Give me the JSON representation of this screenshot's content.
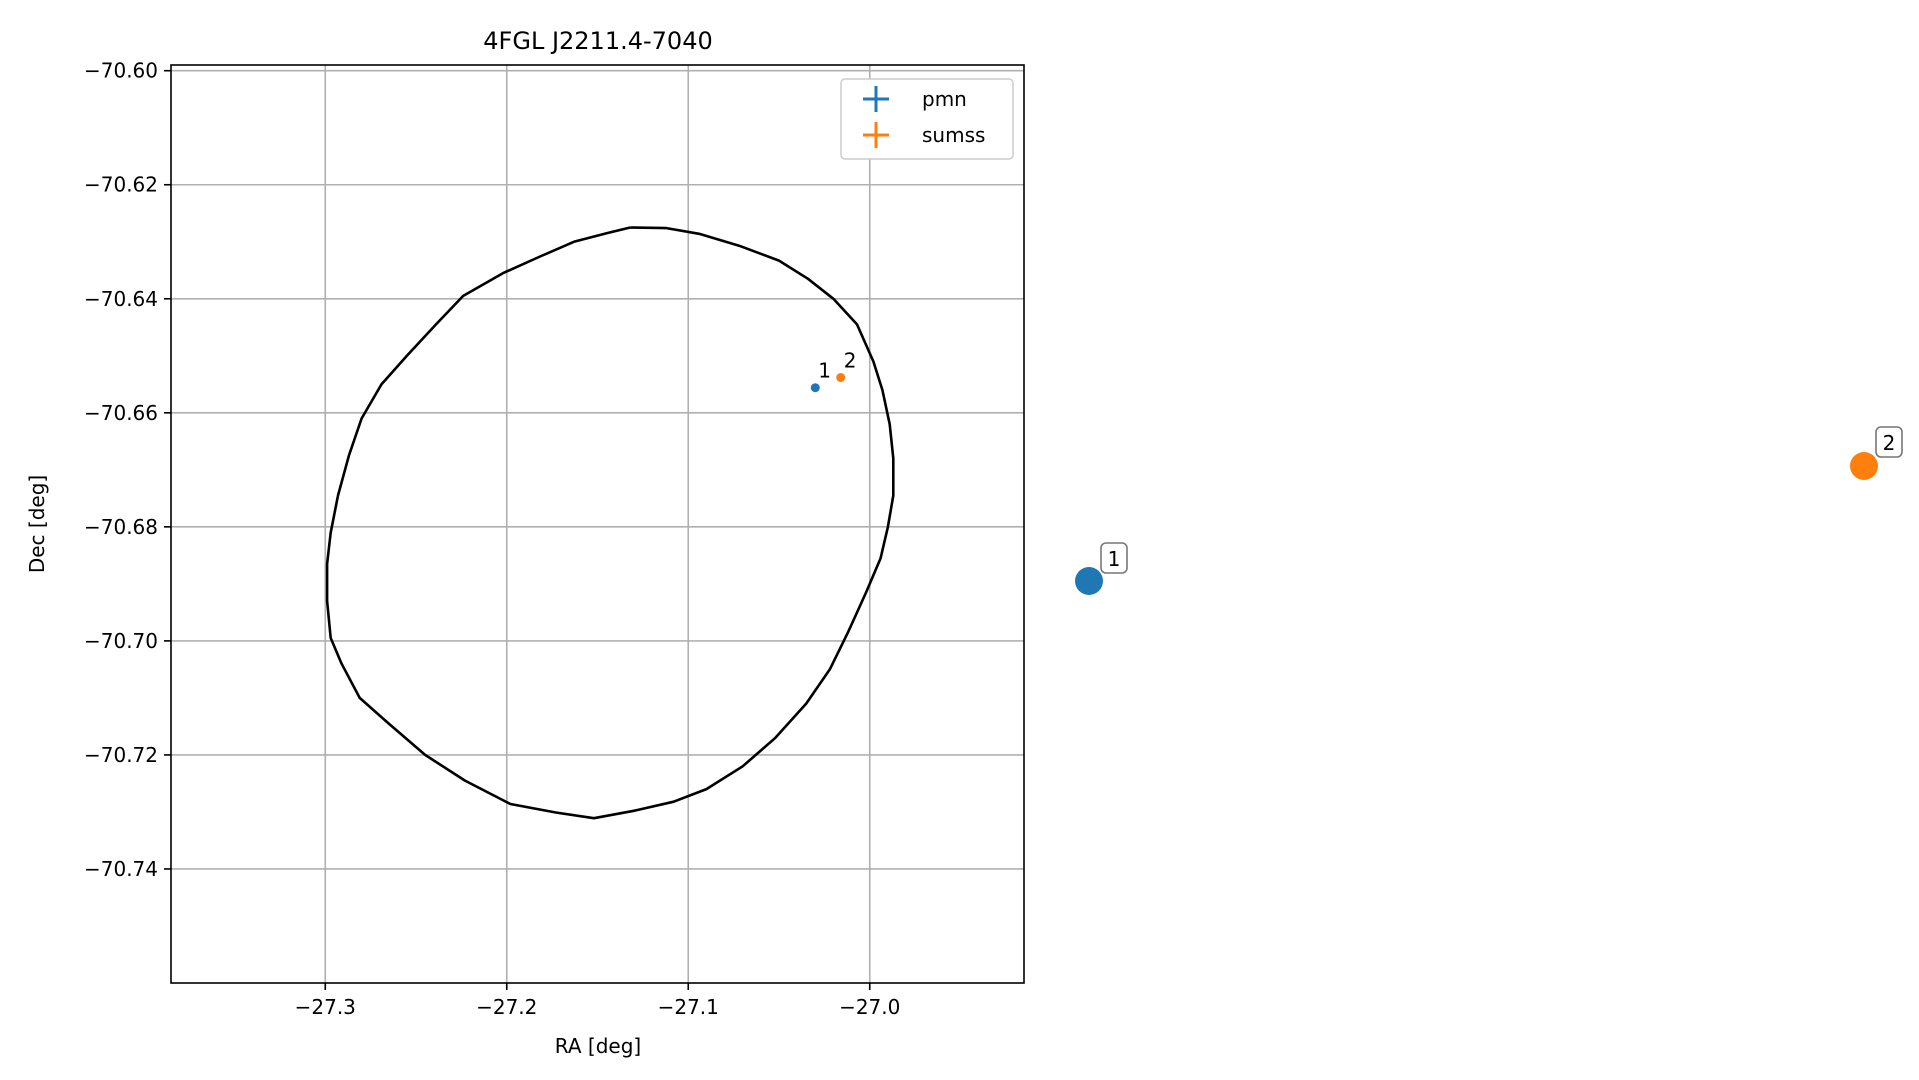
{
  "chart_data": {
    "type": "scatter",
    "title": "4FGL J2211.4-7040",
    "xlabel": "RA [deg]",
    "ylabel": "Dec [deg]",
    "xlim": [
      -27.385,
      -26.915
    ],
    "ylim": [
      -70.76,
      -70.599
    ],
    "xticks": [
      -27.3,
      -27.2,
      -27.1,
      -27.0
    ],
    "xtick_labels": [
      "−27.3",
      "−27.2",
      "−27.1",
      "−27.0"
    ],
    "yticks": [
      -70.6,
      -70.62,
      -70.64,
      -70.66,
      -70.68,
      -70.7,
      -70.72,
      -70.74
    ],
    "ytick_labels": [
      "−70.60",
      "−70.62",
      "−70.64",
      "−70.66",
      "−70.68",
      "−70.70",
      "−70.72",
      "−70.74"
    ],
    "grid": true,
    "legend_position": "top-right",
    "series": [
      {
        "name": "pmn",
        "color": "#1f77b4",
        "points": [
          {
            "x": -27.03,
            "y": -70.6556,
            "label": "1"
          }
        ]
      },
      {
        "name": "sumss",
        "color": "#ff7f0e",
        "points": [
          {
            "x": -27.016,
            "y": -70.6538,
            "label": "2"
          }
        ]
      }
    ],
    "ellipse": {
      "color": "#000000",
      "points": [
        [
          -27.132,
          -70.6275
        ],
        [
          -27.112,
          -70.6276
        ],
        [
          -27.094,
          -70.6286
        ],
        [
          -27.072,
          -70.6307
        ],
        [
          -27.05,
          -70.6333
        ],
        [
          -27.034,
          -70.6365
        ],
        [
          -27.02,
          -70.64
        ],
        [
          -27.007,
          -70.6445
        ],
        [
          -26.998,
          -70.651
        ],
        [
          -26.993,
          -70.656
        ],
        [
          -26.989,
          -70.662
        ],
        [
          -26.987,
          -70.668
        ],
        [
          -26.987,
          -70.6745
        ],
        [
          -26.99,
          -70.68
        ],
        [
          -26.994,
          -70.6855
        ],
        [
          -27.002,
          -70.6915
        ],
        [
          -27.012,
          -70.6985
        ],
        [
          -27.022,
          -70.705
        ],
        [
          -27.035,
          -70.711
        ],
        [
          -27.052,
          -70.717
        ],
        [
          -27.07,
          -70.722
        ],
        [
          -27.09,
          -70.726
        ],
        [
          -27.108,
          -70.7282
        ],
        [
          -27.13,
          -70.7298
        ],
        [
          -27.152,
          -70.7311
        ],
        [
          -27.173,
          -70.7301
        ],
        [
          -27.198,
          -70.7286
        ],
        [
          -27.223,
          -70.7245
        ],
        [
          -27.245,
          -70.72
        ],
        [
          -27.265,
          -70.7145
        ],
        [
          -27.281,
          -70.71
        ],
        [
          -27.291,
          -70.704
        ],
        [
          -27.297,
          -70.6995
        ],
        [
          -27.299,
          -70.693
        ],
        [
          -27.299,
          -70.6865
        ],
        [
          -27.297,
          -70.681
        ],
        [
          -27.293,
          -70.6745
        ],
        [
          -27.287,
          -70.6675
        ],
        [
          -27.28,
          -70.661
        ],
        [
          -27.269,
          -70.655
        ],
        [
          -27.255,
          -70.65
        ],
        [
          -27.239,
          -70.6445
        ],
        [
          -27.224,
          -70.6395
        ],
        [
          -27.202,
          -70.6355
        ],
        [
          -27.181,
          -70.6325
        ],
        [
          -27.163,
          -70.63
        ],
        [
          -27.145,
          -70.6285
        ],
        [
          -27.132,
          -70.6275
        ]
      ]
    }
  },
  "side_panel": {
    "markers": [
      {
        "label": "1",
        "color": "#1f77b4"
      },
      {
        "label": "2",
        "color": "#ff7f0e"
      }
    ]
  }
}
